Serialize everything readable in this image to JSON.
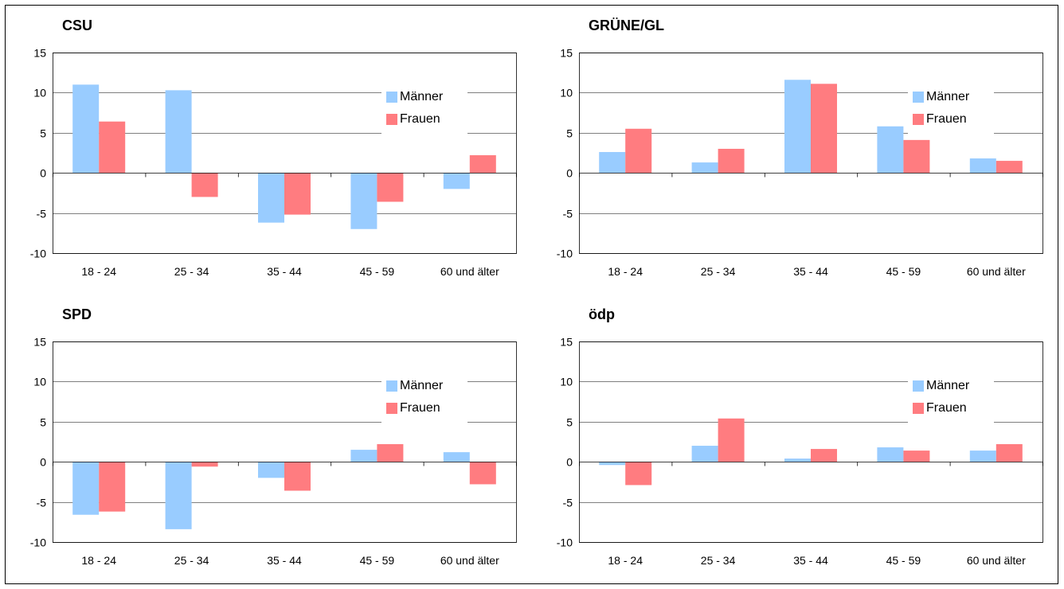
{
  "colors": {
    "maenner": "#99ccff",
    "frauen": "#ff7c80",
    "grid": "#000000"
  },
  "legend": {
    "maenner": "Männer",
    "frauen": "Frauen"
  },
  "chart_data": [
    {
      "type": "bar",
      "title": "CSU",
      "categories": [
        "18 - 24",
        "25 - 34",
        "35 - 44",
        "45 - 59",
        "60 und älter"
      ],
      "series": [
        {
          "name": "Männer",
          "values": [
            11.0,
            10.3,
            -6.2,
            -7.0,
            -2.0
          ]
        },
        {
          "name": "Frauen",
          "values": [
            6.4,
            -3.0,
            -5.2,
            -3.6,
            2.2
          ]
        }
      ],
      "ylim": [
        -10,
        15
      ],
      "yticks": [
        -10,
        -5,
        0,
        5,
        10,
        15
      ],
      "grid": true,
      "legend_position": "top-right"
    },
    {
      "type": "bar",
      "title": "GRÜNE/GL",
      "categories": [
        "18 - 24",
        "25 - 34",
        "35 - 44",
        "45 - 59",
        "60 und älter"
      ],
      "series": [
        {
          "name": "Männer",
          "values": [
            2.6,
            1.3,
            11.6,
            5.8,
            1.8
          ]
        },
        {
          "name": "Frauen",
          "values": [
            5.5,
            3.0,
            11.1,
            4.1,
            1.5
          ]
        }
      ],
      "ylim": [
        -10,
        15
      ],
      "yticks": [
        -10,
        -5,
        0,
        5,
        10,
        15
      ],
      "grid": true,
      "legend_position": "top-right"
    },
    {
      "type": "bar",
      "title": "SPD",
      "categories": [
        "18 - 24",
        "25 - 34",
        "35 - 44",
        "45 - 59",
        "60 und älter"
      ],
      "series": [
        {
          "name": "Männer",
          "values": [
            -6.6,
            -8.4,
            -2.0,
            1.5,
            1.2
          ]
        },
        {
          "name": "Frauen",
          "values": [
            -6.2,
            -0.6,
            -3.6,
            2.2,
            -2.8
          ]
        }
      ],
      "ylim": [
        -10,
        15
      ],
      "yticks": [
        -10,
        -5,
        0,
        5,
        10,
        15
      ],
      "grid": true,
      "legend_position": "top-right"
    },
    {
      "type": "bar",
      "title": "ödp",
      "categories": [
        "18 - 24",
        "25 - 34",
        "35 - 44",
        "45 - 59",
        "60 und älter"
      ],
      "series": [
        {
          "name": "Männer",
          "values": [
            -0.4,
            2.0,
            0.4,
            1.8,
            1.4
          ]
        },
        {
          "name": "Frauen",
          "values": [
            -2.9,
            5.4,
            1.6,
            1.4,
            2.2
          ]
        }
      ],
      "ylim": [
        -10,
        15
      ],
      "yticks": [
        -10,
        -5,
        0,
        5,
        10,
        15
      ],
      "grid": true,
      "legend_position": "top-right"
    }
  ]
}
